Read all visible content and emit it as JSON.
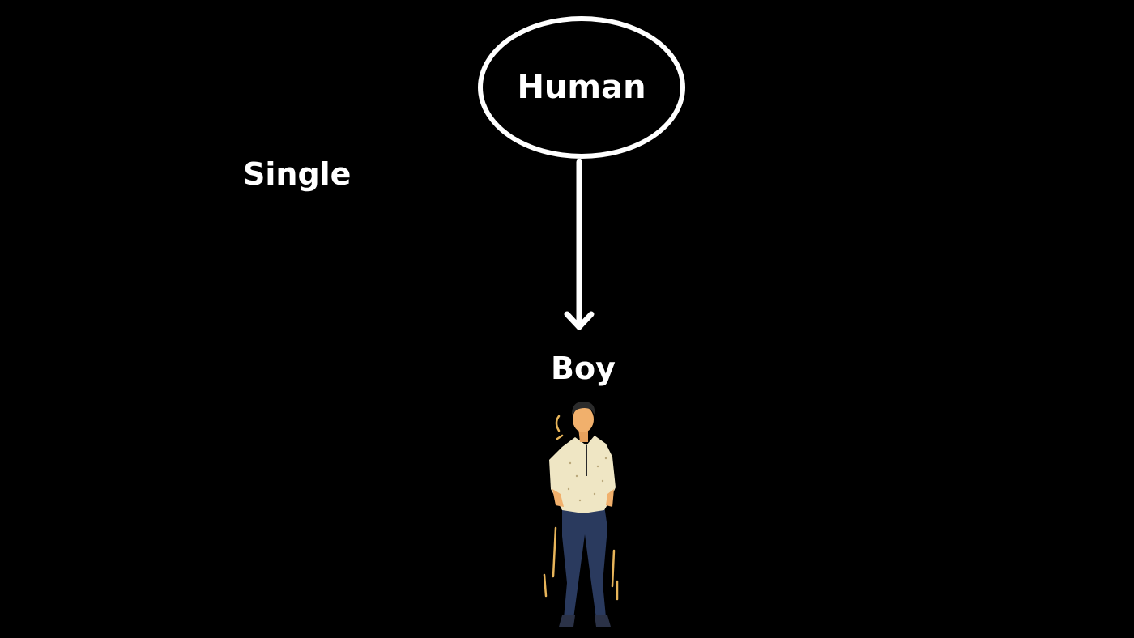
{
  "labels": {
    "single": "Single",
    "human": "Human",
    "boy": "Boy"
  },
  "colors": {
    "background": "#000000",
    "foreground": "#ffffff",
    "shirt": "#efe6c4",
    "pants": "#2a3a5e",
    "skin": "#f1b06c",
    "hair": "#2b2b2b",
    "motion_lines": "#e8b55a"
  },
  "icons": {
    "person": "standing-man-illustration"
  }
}
